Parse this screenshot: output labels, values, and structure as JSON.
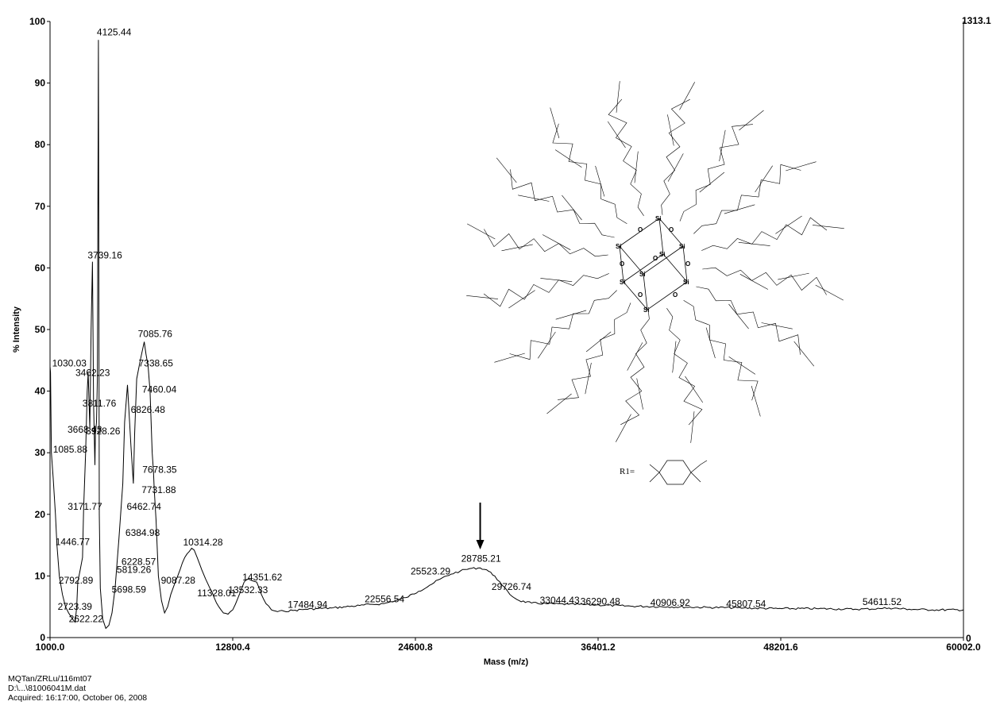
{
  "chart_data": {
    "type": "line",
    "title": "",
    "xlabel": "Mass (m/z)",
    "ylabel": "% Intensity",
    "xlim": [
      1000.0,
      60002.0
    ],
    "ylim": [
      0,
      100
    ],
    "x_ticks": [
      "1000.0",
      "12800.4",
      "24600.8",
      "36401.2",
      "48201.6",
      "60002.0"
    ],
    "x_tick_values": [
      1000.0,
      12800.4,
      24600.8,
      36401.2,
      48201.6,
      60002.0
    ],
    "y_ticks": [
      "0",
      "10",
      "20",
      "30",
      "40",
      "50",
      "60",
      "70",
      "80",
      "90",
      "100"
    ],
    "y_tick_values": [
      0,
      10,
      20,
      30,
      40,
      50,
      60,
      70,
      80,
      90,
      100
    ],
    "right_axis_top": "1313.1",
    "right_axis_bottom": "0",
    "grid": false,
    "series": [
      {
        "x": [
          1000,
          1030,
          1085,
          1200,
          1350,
          1446,
          1600,
          1800,
          2000,
          2200,
          2450,
          2622,
          2723,
          2792,
          2950,
          3100,
          3171,
          3300,
          3400,
          3462,
          3568,
          3650,
          3739,
          3811,
          3900,
          3928,
          4000,
          4060,
          4125,
          4180,
          4250,
          4400,
          4600,
          4800,
          5000,
          5200,
          5450,
          5698,
          5819,
          6000,
          6228,
          6384,
          6462,
          6600,
          6826,
          7000,
          7085,
          7200,
          7338,
          7460,
          7600,
          7678,
          7731,
          7850,
          8000,
          8200,
          8400,
          8600,
          8800,
          9087,
          9400,
          9700,
          10000,
          10150,
          10314,
          10500,
          10800,
          11050,
          11328,
          11600,
          11900,
          12200,
          12500,
          12800,
          13150,
          13532,
          13800,
          14100,
          14351,
          14650,
          14950,
          15300,
          15700,
          16100,
          16700,
          17484,
          18300,
          19200,
          20100,
          21000,
          21800,
          22556,
          23300,
          24000,
          24800,
          25523,
          26200,
          26900,
          27500,
          28100,
          28785,
          29200,
          29726,
          30200,
          30700,
          31300,
          32100,
          33044,
          34500,
          36290,
          38500,
          40906,
          43500,
          45807,
          48000,
          50500,
          53000,
          54611,
          55200,
          56500,
          58000,
          60002
        ],
        "y": [
          44,
          43,
          30,
          26,
          20,
          15,
          10,
          7,
          5,
          4,
          3,
          2.5,
          5,
          9,
          11,
          13,
          21,
          30,
          40,
          43,
          34,
          50,
          61,
          38,
          28,
          33,
          35,
          42,
          97,
          20,
          8,
          3,
          1.5,
          2,
          4,
          8,
          16,
          25,
          35,
          41,
          31,
          25,
          33,
          42,
          45,
          47,
          48,
          46,
          44,
          40,
          30,
          27,
          24,
          19,
          10,
          6,
          4,
          5,
          7,
          9,
          11,
          13,
          14,
          14.5,
          14.2,
          13,
          11,
          9.5,
          8,
          6.5,
          5,
          4,
          3.8,
          4.5,
          6.5,
          9,
          9.5,
          9.2,
          9,
          7,
          5.5,
          4.5,
          4.2,
          4.3,
          4.4,
          4.6,
          4.7,
          4.8,
          5,
          5.2,
          5.4,
          5.5,
          6,
          6.5,
          7.5,
          8.5,
          9.5,
          10.3,
          10.8,
          11.2,
          11.3,
          11,
          10,
          8.5,
          7,
          6,
          5.6,
          5.5,
          5.4,
          5.3,
          5.1,
          5,
          4.9,
          4.8,
          4.7,
          4.7,
          4.6,
          4.7,
          4.8,
          4.6,
          4.5,
          4.5
        ]
      }
    ],
    "annotations": [
      {
        "text": "4125.44",
        "x": 4125,
        "y": 97
      },
      {
        "text": "3739.16",
        "x": 3739,
        "y": 61
      },
      {
        "text": "1030.03",
        "x": 1030,
        "y": 44
      },
      {
        "text": "3462.23",
        "x": 3462,
        "y": 43
      },
      {
        "text": "3811.76",
        "x": 3811,
        "y": 38
      },
      {
        "text": "3668.43",
        "x": 3668,
        "y": 34
      },
      {
        "text": "3928.26",
        "x": 3928,
        "y": 33
      },
      {
        "text": "1085.88",
        "x": 1085,
        "y": 30
      },
      {
        "text": "3171.77",
        "x": 3171,
        "y": 21
      },
      {
        "text": "1446.77",
        "x": 1446,
        "y": 15
      },
      {
        "text": "2792.89",
        "x": 2792,
        "y": 9
      },
      {
        "text": "2723.39",
        "x": 2723,
        "y": 5
      },
      {
        "text": "2622.22",
        "x": 2622,
        "y": 2.5
      },
      {
        "text": "7085.76",
        "x": 7085,
        "y": 48
      },
      {
        "text": "7338.65",
        "x": 7338,
        "y": 44
      },
      {
        "text": "7460.04",
        "x": 7460,
        "y": 40
      },
      {
        "text": "6826.48",
        "x": 6826,
        "y": 37
      },
      {
        "text": "7678.35",
        "x": 7678,
        "y": 27
      },
      {
        "text": "7731.88",
        "x": 7731,
        "y": 24
      },
      {
        "text": "6462.74",
        "x": 6462,
        "y": 20
      },
      {
        "text": "6384.98",
        "x": 6384,
        "y": 16
      },
      {
        "text": "6228.57",
        "x": 6228,
        "y": 11
      },
      {
        "text": "5819.26",
        "x": 5819,
        "y": 10
      },
      {
        "text": "5698.59",
        "x": 5698,
        "y": 7
      },
      {
        "text": "10314.28",
        "x": 10314,
        "y": 14.2
      },
      {
        "text": "9087.28",
        "x": 9087,
        "y": 9
      },
      {
        "text": "11328.01",
        "x": 11328,
        "y": 8
      },
      {
        "text": "14351.62",
        "x": 14351,
        "y": 9
      },
      {
        "text": "13532.33",
        "x": 13532,
        "y": 9
      },
      {
        "text": "17484.94",
        "x": 17484,
        "y": 4.6
      },
      {
        "text": "22556.54",
        "x": 22556,
        "y": 5.5
      },
      {
        "text": "25523.29",
        "x": 25523,
        "y": 9.5
      },
      {
        "text": "28785.21",
        "x": 28785,
        "y": 11.3
      },
      {
        "text": "29726.74",
        "x": 29726,
        "y": 8.5
      },
      {
        "text": "33044.43",
        "x": 33044,
        "y": 5.3
      },
      {
        "text": "36290.48",
        "x": 36290,
        "y": 5.1
      },
      {
        "text": "40906.92",
        "x": 40906,
        "y": 4.9
      },
      {
        "text": "45807.54",
        "x": 45807,
        "y": 4.7
      },
      {
        "text": "54611.52",
        "x": 54611,
        "y": 4.8
      }
    ],
    "arrow_at_x": 28785
  },
  "inset": {
    "r1_label": "R1="
  },
  "footer": {
    "line1": "MQTan/ZRLu/116mt07",
    "line2": "D:\\...\\81006041M.dat",
    "line3": "Acquired: 16:17:00, October 06, 2008"
  },
  "colors": {
    "line": "#000000",
    "background": "#ffffff"
  }
}
